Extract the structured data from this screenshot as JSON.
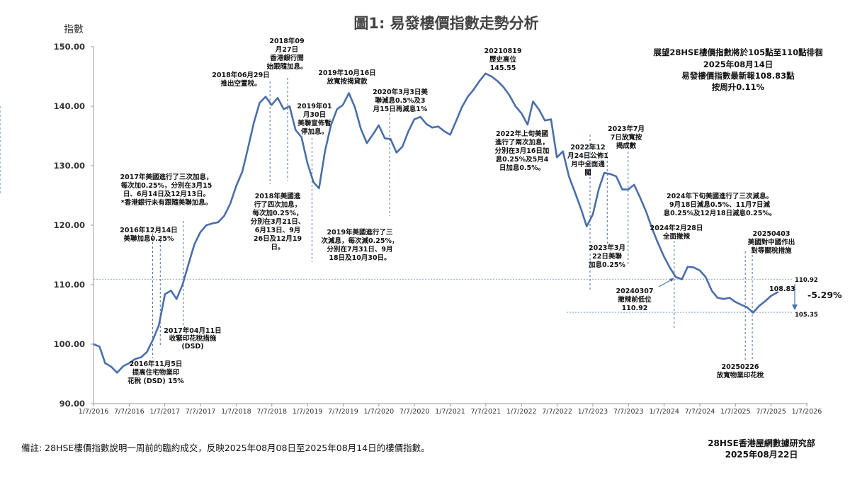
{
  "chart_data": {
    "type": "line",
    "title": "圖1: 易發樓價指數走勢分析",
    "ylabel": "指數",
    "ylim": [
      90,
      150
    ],
    "y_ticks": [
      "90.00",
      "100.00",
      "110.00",
      "120.00",
      "130.00",
      "140.00",
      "150.00"
    ],
    "x_ticks": [
      "1/7/2016",
      "7/7/2016",
      "1/7/2017",
      "7/7/2017",
      "1/7/2018",
      "7/7/2018",
      "1/7/2019",
      "7/7/2019",
      "1/7/2020",
      "7/7/2020",
      "1/7/2021",
      "7/7/2021",
      "1/7/2022",
      "7/7/2022",
      "1/7/2023",
      "7/7/2023",
      "1/7/2024",
      "7/7/2024",
      "1/7/2025",
      "7/7/2025",
      "1/7/2026"
    ],
    "grid": false,
    "legend": "none",
    "line_color": "#4a6ea8",
    "series": [
      {
        "x": [
          "2016-01-07",
          "2016-02-07",
          "2016-03-07",
          "2016-04-07",
          "2016-05-07",
          "2016-06-07",
          "2016-07-07",
          "2016-08-07",
          "2016-09-07",
          "2016-10-07",
          "2016-11-07",
          "2016-12-07",
          "2017-01-07",
          "2017-02-07",
          "2017-03-07",
          "2017-04-07",
          "2017-05-07",
          "2017-06-07",
          "2017-07-07",
          "2017-08-07",
          "2017-09-07",
          "2017-10-07",
          "2017-11-07",
          "2017-12-07",
          "2018-01-07",
          "2018-02-07",
          "2018-03-07",
          "2018-04-07",
          "2018-05-07",
          "2018-06-07",
          "2018-07-07",
          "2018-08-07",
          "2018-09-07",
          "2018-10-07",
          "2018-11-07",
          "2018-12-07",
          "2019-01-07",
          "2019-02-07",
          "2019-03-07",
          "2019-04-07",
          "2019-05-07",
          "2019-06-07",
          "2019-07-07",
          "2019-08-07",
          "2019-09-07",
          "2019-10-07",
          "2019-11-07",
          "2019-12-07",
          "2020-01-07",
          "2020-02-07",
          "2020-03-07",
          "2020-04-07",
          "2020-05-07",
          "2020-06-07",
          "2020-07-07",
          "2020-08-07",
          "2020-09-07",
          "2020-10-07",
          "2020-11-07",
          "2020-12-07",
          "2021-01-07",
          "2021-02-07",
          "2021-03-07",
          "2021-04-07",
          "2021-05-07",
          "2021-06-07",
          "2021-07-07",
          "2021-08-07",
          "2021-09-07",
          "2021-10-07",
          "2021-11-07",
          "2021-12-07",
          "2022-01-07",
          "2022-02-07",
          "2022-03-07",
          "2022-04-07",
          "2022-05-07",
          "2022-06-07",
          "2022-07-07",
          "2022-08-07",
          "2022-09-07",
          "2022-10-07",
          "2022-11-07",
          "2022-12-07",
          "2023-01-07",
          "2023-02-07",
          "2023-03-07",
          "2023-04-07",
          "2023-05-07",
          "2023-06-07",
          "2023-07-07",
          "2023-08-07",
          "2023-09-07",
          "2023-10-07",
          "2023-11-07",
          "2023-12-07",
          "2024-01-07",
          "2024-02-07",
          "2024-03-07",
          "2024-04-07",
          "2024-05-07",
          "2024-06-07",
          "2024-07-07",
          "2024-08-07",
          "2024-09-07",
          "2024-10-07",
          "2024-11-07",
          "2024-12-07",
          "2025-01-07",
          "2025-02-07",
          "2025-03-07",
          "2025-04-07",
          "2025-05-07",
          "2025-06-07",
          "2025-07-07",
          "2025-08-14"
        ],
        "values": [
          100.0,
          99.6,
          96.8,
          96.2,
          95.2,
          96.3,
          96.8,
          97.5,
          97.8,
          98.7,
          100.8,
          103.2,
          108.4,
          109.0,
          107.6,
          110.0,
          113.4,
          116.8,
          118.8,
          120.0,
          120.3,
          120.5,
          121.6,
          123.6,
          126.6,
          129.0,
          132.8,
          137.2,
          140.6,
          141.6,
          140.2,
          141.4,
          139.5,
          140.0,
          136.0,
          134.8,
          130.4,
          127.2,
          126.2,
          132.5,
          136.8,
          139.5,
          140.2,
          142.2,
          139.8,
          136.2,
          133.8,
          135.2,
          136.8,
          134.6,
          134.5,
          132.2,
          133.2,
          135.8,
          137.8,
          138.2,
          137.0,
          136.4,
          136.6,
          135.8,
          135.2,
          137.6,
          139.8,
          141.6,
          142.8,
          144.3,
          145.5,
          145.0,
          144.2,
          143.2,
          141.8,
          140.0,
          138.8,
          136.9,
          140.8,
          139.4,
          137.6,
          137.8,
          131.4,
          132.4,
          128.2,
          125.6,
          122.8,
          119.8,
          121.8,
          126.1,
          128.8,
          128.6,
          128.2,
          126.0,
          126.0,
          126.8,
          124.6,
          122.3,
          119.4,
          117.0,
          114.7,
          112.8,
          111.3,
          110.9,
          113.0,
          112.9,
          112.4,
          111.3,
          109.0,
          107.8,
          107.6,
          107.8,
          107.1,
          106.6,
          106.2,
          105.3,
          106.4,
          107.2,
          108.1,
          108.8
        ]
      }
    ],
    "annotations": [
      {
        "text": [
          "2016年11月5日",
          "提高住宅物業印",
          "花稅 (DSD) 15%"
        ],
        "date": "2016-11-05"
      },
      {
        "text": [
          "2016年12月14日",
          "美聯加息0.25%"
        ],
        "date": "2016-12-14"
      },
      {
        "text": [
          "2017年04月11日",
          "收緊印花稅措施",
          "(DSD)"
        ],
        "date": "2017-04-11"
      },
      {
        "text": [
          "2017年美國進行了三次加息，",
          "每次加0.25%，分別在3月15",
          "日、6月14日及12月13日。",
          "*香港銀行未有跟隨美聯加息。"
        ],
        "date": ""
      },
      {
        "text": [
          "2018年06月29日",
          "推出空置稅。"
        ],
        "date": "2018-06-29"
      },
      {
        "text": [
          "2018年09",
          "月27日",
          "香港銀行開",
          "始跟隨加息。"
        ],
        "date": "2018-09-27"
      },
      {
        "text": [
          "2018年美國進",
          "行了四次加息，",
          "每次加0.25%，",
          "分別在3月21日、",
          "6月13日、9月",
          "26日及12月19",
          "日。"
        ],
        "date": ""
      },
      {
        "text": [
          "2019年01",
          "月30日",
          "美聯宣佈暫",
          "停加息。"
        ],
        "date": "2019-01-30"
      },
      {
        "text": [
          "2019年10月16日",
          "放寬按揭貸款"
        ],
        "date": "2019-10-16"
      },
      {
        "text": [
          "2020年3月3日美",
          "聯減息0.5%及3",
          "月15日再減息1%"
        ],
        "date": "2020-03-03"
      },
      {
        "text": [
          "2019年美國進行了三",
          "次減息，每次減0.25%，",
          "分別在7月31日、9月",
          "18日及10月30日。"
        ],
        "date": ""
      },
      {
        "text": [
          "20210819",
          "歷史高位",
          "145.55"
        ],
        "date": "2021-08-19"
      },
      {
        "text": [
          "2022年上旬美國",
          "進行了兩次加息，",
          "分別在3月16日加",
          "息0.25%及5月4",
          "日加息0.5%。"
        ],
        "date": ""
      },
      {
        "text": [
          "2022年12",
          "月24日公佈1",
          "月中全面通",
          "關"
        ],
        "date": "2022-12-24"
      },
      {
        "text": [
          "2023年7月",
          "7日放寬按",
          "揭成數"
        ],
        "date": "2023-07-07"
      },
      {
        "text": [
          "2023年3月",
          "22日美聯",
          "加息0.25%"
        ],
        "date": "2023-03-22"
      },
      {
        "text": [
          "2024年2月28日",
          "全面撤辣"
        ],
        "date": "2024-02-28"
      },
      {
        "text": [
          "2024年下旬美國進行了三次減息。",
          "9月18日減息0.5%、11月7日減",
          "息0.25%及12月18日減息0.25%。"
        ],
        "date": ""
      },
      {
        "text": [
          "20240307",
          "撤辣前低位",
          "110.92"
        ],
        "date": "2024-03-07"
      },
      {
        "text": [
          "20250403",
          "美國對中國作出",
          "對等關稅措施"
        ],
        "date": "2025-04-03"
      },
      {
        "text": [
          "20250226",
          "放寬物業印花稅"
        ],
        "date": "2025-02-26"
      }
    ],
    "reference_levels": [
      {
        "value": 110.92,
        "label": "110.92"
      },
      {
        "value": 105.35,
        "label": "105.35"
      }
    ],
    "last_value_label": "108.83",
    "change_label": "-5.29%",
    "info_box": [
      "展望28HSE樓價指數將於105點至110點徘徊",
      "2025年08月14日",
      "易發樓價指數最新報108.83點",
      "按周升0.11%"
    ]
  },
  "footnote": "備註: 28HSE樓價指數說明一周前的臨約成交，反映2025年08月08日至2025年08月14日的樓價指數。",
  "source": {
    "org": "28HSE香港屋網數據研究部",
    "date": "2025年08月22日"
  }
}
